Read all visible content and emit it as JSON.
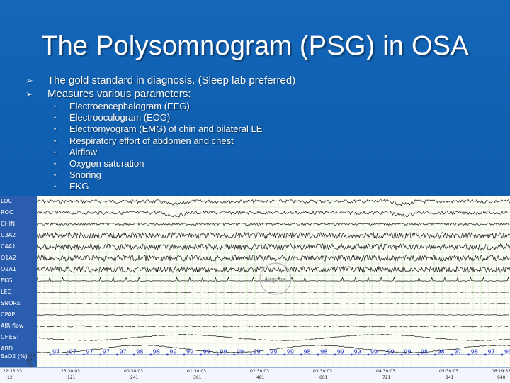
{
  "slide": {
    "title": "The Polysomnogram (PSG) in OSA",
    "bullets": [
      "The gold standard in diagnosis. (Sleep lab preferred)",
      "Measures various parameters:"
    ],
    "sub_bullets": [
      "Electroencephalogram (EEG)",
      "Electrooculogram (EOG)",
      "Electromyogram (EMG) of chin and bilateral LE",
      "Respiratory effort of abdomen and chest",
      "Airflow",
      "Oxygen saturation",
      "Snoring",
      "EKG"
    ]
  },
  "psg": {
    "channels": [
      "LOC",
      "ROC",
      "CHIN",
      "C3A2",
      "C4A1",
      "O1A2",
      "O2A1",
      "EKG",
      "LEG",
      "SNORE",
      "CPAP",
      "AIR-flow",
      "CHEST",
      "ABD"
    ],
    "sao2_label": "SaO2 (%)",
    "sao2_scale": [
      "100",
      "87",
      "75"
    ],
    "sao2_values": [
      "97",
      "97",
      "97",
      "97",
      "97",
      "98",
      "98",
      "99",
      "99",
      "99",
      "99",
      "99",
      "99",
      "99",
      "99",
      "98",
      "98",
      "99",
      "99",
      "99",
      "99",
      "99",
      "98",
      "98",
      "97",
      "98",
      "97",
      "96"
    ],
    "position_watermark": "Supine",
    "side_watermark": "S03",
    "times": [
      "22:35:33",
      "23:30:03",
      "00:30:03",
      "01:30:03",
      "02:30:03",
      "03:30:03",
      "04:30:03",
      "05:30:03",
      "06:19:33"
    ],
    "epochs": [
      "121",
      "241",
      "361",
      "481",
      "601",
      "721",
      "841",
      "940"
    ],
    "epoch_start": "12",
    "colors": {
      "trace": "#1a1a1a",
      "grid": "#9fd48a",
      "sao2_point": "#1f33c8",
      "label_bg": "#2a5dad"
    }
  }
}
